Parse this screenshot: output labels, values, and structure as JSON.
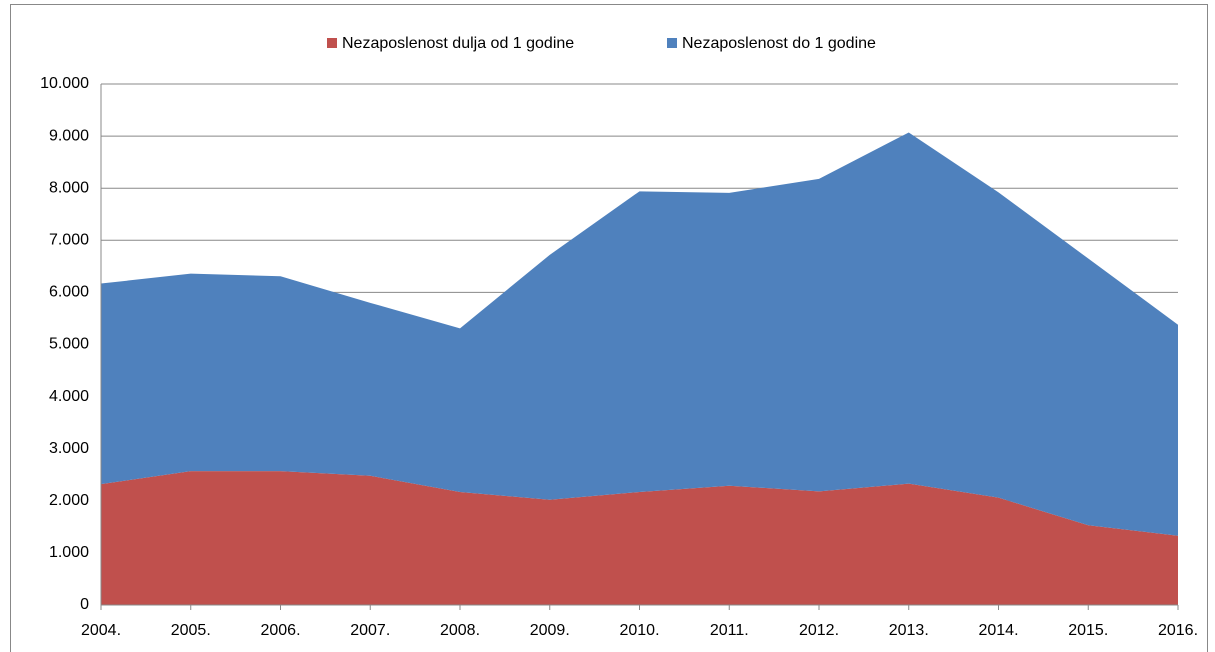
{
  "chart_data": {
    "type": "stacked_area",
    "categories": [
      "2004.",
      "2005.",
      "2006.",
      "2007.",
      "2008.",
      "2009.",
      "2010.",
      "2011.",
      "2012.",
      "2013.",
      "2014.",
      "2015.",
      "2016."
    ],
    "series": [
      {
        "name": "Nezaposlenost dulja od 1 godine",
        "color": "#c0504d",
        "values": [
          2320,
          2570,
          2570,
          2480,
          2170,
          2020,
          2170,
          2290,
          2180,
          2330,
          2060,
          1530,
          1330
        ]
      },
      {
        "name": "Nezaposlenost do 1 godine",
        "color": "#4f81bd",
        "values": [
          3850,
          3790,
          3740,
          3320,
          3140,
          4700,
          5770,
          5620,
          6000,
          6740,
          5860,
          5120,
          4050
        ]
      }
    ],
    "ylim": [
      0,
      10000
    ],
    "yticks": [
      0,
      {
        "value": 1000,
        "label": "1.000"
      },
      {
        "value": 2000,
        "label": "2.000"
      },
      {
        "value": 3000,
        "label": "3.000"
      },
      {
        "value": 4000,
        "label": "4.000"
      },
      {
        "value": 5000,
        "label": "5.000"
      },
      {
        "value": 6000,
        "label": "6.000"
      },
      {
        "value": 7000,
        "label": "7.000"
      },
      {
        "value": 8000,
        "label": "8.000"
      },
      {
        "value": 9000,
        "label": "9.000"
      },
      {
        "value": 10000,
        "label": "10.000"
      }
    ],
    "grid": true,
    "legend": "top"
  }
}
